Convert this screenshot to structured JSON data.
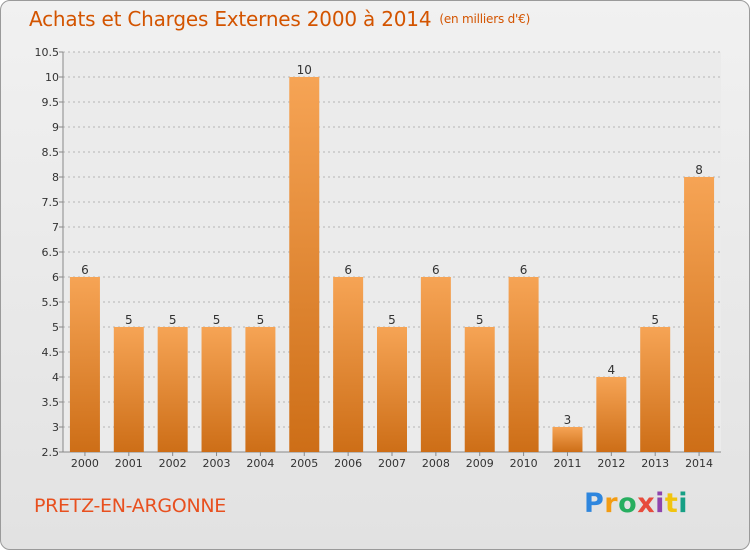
{
  "chart_data": {
    "type": "bar",
    "title": "Achats et Charges Externes 2000 à 2014",
    "subtitle": "(en milliers d'€)",
    "categories": [
      "2000",
      "2001",
      "2002",
      "2003",
      "2004",
      "2005",
      "2006",
      "2007",
      "2008",
      "2009",
      "2010",
      "2011",
      "2012",
      "2013",
      "2014"
    ],
    "values": [
      6,
      5,
      5,
      5,
      5,
      10,
      6,
      5,
      6,
      5,
      6,
      3,
      4,
      5,
      8
    ],
    "ylim": [
      2.5,
      10.5
    ],
    "yticks": [
      "2.5",
      "3",
      "3.5",
      "4",
      "4.5",
      "5",
      "5.5",
      "6",
      "6.5",
      "7",
      "7.5",
      "8",
      "8.5",
      "9",
      "9.5",
      "10",
      "10.5"
    ],
    "grid": true,
    "bar_color_top": "#f6a455",
    "bar_color_bottom": "#cd6e17"
  },
  "location": "PRETZ-EN-ARGONNE",
  "logo": {
    "letters": [
      "P",
      "r",
      "o",
      "x",
      "i",
      "t",
      "i"
    ],
    "colors": [
      "#2e86de",
      "#f39c12",
      "#27ae60",
      "#e74c3c",
      "#8e44ad",
      "#f1c40f",
      "#16a085"
    ]
  }
}
